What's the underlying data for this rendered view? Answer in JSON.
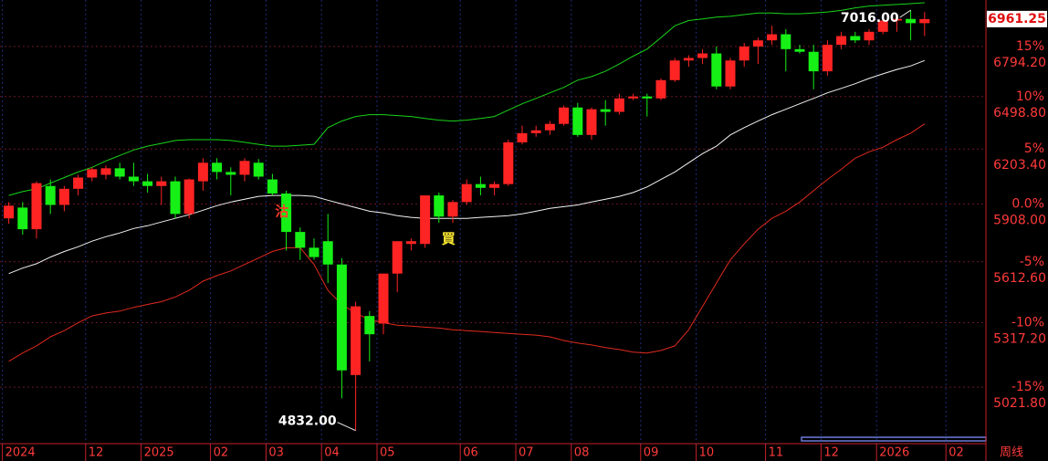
{
  "chart_data": {
    "type": "candlestick",
    "categories": [
      "2024",
      null,
      null,
      null,
      null,
      null,
      "12",
      null,
      null,
      null,
      "2025",
      null,
      null,
      null,
      null,
      "02",
      null,
      null,
      null,
      "03",
      null,
      null,
      null,
      "04",
      null,
      null,
      null,
      "05",
      null,
      null,
      null,
      null,
      null,
      "06",
      null,
      null,
      null,
      "07",
      null,
      null,
      null,
      "08",
      null,
      null,
      null,
      null,
      "09",
      null,
      null,
      null,
      "10",
      null,
      null,
      null,
      null,
      "11",
      null,
      null,
      null,
      "12",
      null,
      null,
      null,
      "2026",
      null,
      null,
      null,
      null,
      "02"
    ],
    "open": [
      5833,
      5889,
      5777,
      6003,
      5903,
      5988,
      6048,
      6063,
      6098,
      6053,
      6028,
      6003,
      6028,
      5856,
      6028,
      6128,
      6078,
      6063,
      6128,
      6038,
      5963,
      5763,
      5683,
      5716,
      5599,
      5076,
      5349,
      5313,
      5554,
      5702,
      5702,
      5953,
      5842,
      5918,
      6013,
      5993,
      6013,
      6240,
      6291,
      6307,
      6343,
      6436,
      6281,
      6426,
      6411,
      6488,
      6499,
      6488,
      6594,
      6710,
      6725,
      6752,
      6557,
      6710,
      6794,
      6831,
      6868,
      6778,
      6762,
      6646,
      6804,
      6857,
      6831,
      6883,
      6952,
      6962,
      6936,
      null,
      null
    ],
    "high": [
      5918,
      5918,
      6028,
      6038,
      6003,
      6063,
      6103,
      6113,
      6128,
      6128,
      6068,
      6053,
      6053,
      6043,
      6153,
      6153,
      6103,
      6153,
      6148,
      6068,
      5978,
      5786,
      5730,
      5856,
      5631,
      5417,
      5372,
      5554,
      5716,
      5730,
      5953,
      5968,
      5928,
      6038,
      6053,
      6028,
      6255,
      6333,
      6333,
      6359,
      6447,
      6462,
      6436,
      6478,
      6515,
      6515,
      6515,
      6604,
      6725,
      6741,
      6778,
      6794,
      6725,
      6815,
      6847,
      6920,
      6899,
      6804,
      6804,
      6831,
      6883,
      6883,
      6899,
      6973,
      6994,
      7016,
      7005,
      null,
      null
    ],
    "low": [
      5805,
      5749,
      5730,
      5856,
      5870,
      5953,
      6028,
      6038,
      6038,
      6003,
      5968,
      5903,
      5833,
      5833,
      5978,
      6038,
      5953,
      6028,
      6038,
      5953,
      5669,
      5622,
      5622,
      5508,
      4972,
      4832,
      5138,
      5263,
      5463,
      5669,
      5683,
      5810,
      5810,
      5903,
      5953,
      5953,
      6003,
      6229,
      6271,
      6281,
      6333,
      6271,
      6255,
      6333,
      6395,
      6478,
      6385,
      6478,
      6583,
      6673,
      6689,
      6541,
      6541,
      6673,
      6689,
      6804,
      6646,
      6752,
      6541,
      6620,
      6778,
      6815,
      6804,
      6868,
      6883,
      6831,
      6857,
      null,
      null
    ],
    "close": [
      5899,
      5777,
      6018,
      5903,
      5988,
      6048,
      6093,
      6098,
      6053,
      6028,
      6003,
      6028,
      5856,
      6038,
      6128,
      6078,
      6063,
      6138,
      6053,
      5963,
      5763,
      5683,
      5636,
      5599,
      5097,
      5395,
      5263,
      5554,
      5716,
      5716,
      5953,
      5842,
      5918,
      6013,
      5993,
      6013,
      6240,
      6291,
      6307,
      6343,
      6436,
      6281,
      6426,
      6411,
      6488,
      6499,
      6488,
      6594,
      6710,
      6725,
      6752,
      6557,
      6710,
      6794,
      6831,
      6868,
      6778,
      6762,
      6646,
      6804,
      6857,
      6831,
      6883,
      6952,
      6962,
      6936,
      6961.25,
      null,
      null
    ],
    "up_color": "#ff2424",
    "down_color": "#16f016",
    "bands": [
      {
        "color": "#19d419",
        "values": [
          5953,
          5973,
          5988,
          6018,
          6048,
          6078,
          6103,
          6138,
          6168,
          6198,
          6219,
          6234,
          6250,
          6255,
          6255,
          6255,
          6250,
          6240,
          6229,
          6219,
          6219,
          6224,
          6229,
          6322,
          6359,
          6385,
          6395,
          6395,
          6390,
          6385,
          6374,
          6364,
          6359,
          6364,
          6374,
          6385,
          6421,
          6457,
          6488,
          6520,
          6552,
          6594,
          6615,
          6646,
          6689,
          6736,
          6778,
          6847,
          6920,
          6952,
          6962,
          6973,
          6978,
          6989,
          6999,
          6999,
          6994,
          6994,
          6999,
          7005,
          7015,
          7031,
          7042,
          7047,
          7052,
          7057,
          7063,
          null,
          null
        ]
      },
      {
        "color": "#f2f2f2",
        "values": [
          5554,
          5581,
          5603,
          5636,
          5664,
          5688,
          5716,
          5739,
          5758,
          5781,
          5795,
          5814,
          5833,
          5852,
          5875,
          5899,
          5918,
          5933,
          5948,
          5953,
          5953,
          5953,
          5948,
          5928,
          5908,
          5889,
          5870,
          5861,
          5847,
          5838,
          5833,
          5833,
          5833,
          5833,
          5838,
          5842,
          5847,
          5856,
          5870,
          5885,
          5894,
          5903,
          5918,
          5933,
          5948,
          5968,
          5998,
          6038,
          6078,
          6128,
          6178,
          6219,
          6281,
          6322,
          6359,
          6395,
          6426,
          6457,
          6488,
          6520,
          6546,
          6573,
          6604,
          6631,
          6657,
          6678,
          6710,
          null,
          null
        ]
      },
      {
        "color": "#e02a1e",
        "values": [
          5138,
          5176,
          5209,
          5251,
          5280,
          5317,
          5349,
          5363,
          5372,
          5390,
          5404,
          5417,
          5440,
          5472,
          5517,
          5544,
          5567,
          5599,
          5631,
          5664,
          5683,
          5683,
          5599,
          5472,
          5404,
          5363,
          5331,
          5317,
          5305,
          5301,
          5296,
          5292,
          5284,
          5280,
          5276,
          5271,
          5267,
          5263,
          5259,
          5251,
          5234,
          5222,
          5213,
          5201,
          5192,
          5180,
          5176,
          5188,
          5209,
          5284,
          5395,
          5508,
          5622,
          5702,
          5777,
          5833,
          5870,
          5918,
          5978,
          6038,
          6093,
          6153,
          6188,
          6213,
          6255,
          6291,
          6343,
          null,
          null
        ]
      }
    ],
    "signals": [
      null,
      null,
      null,
      null,
      null,
      null,
      null,
      null,
      null,
      null,
      null,
      null,
      null,
      null,
      null,
      null,
      null,
      null,
      null,
      {
        "label": "沽",
        "color": "#ff3a2a"
      },
      null,
      null,
      null,
      null,
      null,
      null,
      null,
      null,
      null,
      null,
      null,
      {
        "label": "買",
        "color": "#ffee33"
      },
      null,
      null,
      null,
      null,
      null,
      null,
      null,
      null,
      null,
      null,
      null,
      null,
      null,
      null,
      null,
      null,
      null,
      null,
      null,
      null,
      null,
      null,
      null,
      null,
      null,
      null,
      null,
      null,
      null,
      null,
      null,
      null,
      null,
      null,
      null,
      null,
      null
    ],
    "high_label": "7016.00",
    "low_label": "4832.00",
    "period": "周线",
    "log_scale": true,
    "grid": true,
    "ylim": [
      4780,
      7080
    ],
    "yticks": [
      {
        "value": 6794.2,
        "label": "6794.20"
      },
      {
        "value": 6498.8,
        "label": "6498.80"
      },
      {
        "value": 6203.4,
        "label": "6203.40"
      },
      {
        "value": 5908,
        "label": "5908.00"
      },
      {
        "value": 5612.6,
        "label": "5612.60"
      },
      {
        "value": 5317.2,
        "label": "5317.20"
      },
      {
        "value": 5021.8,
        "label": "5021.80"
      }
    ],
    "percent_labels": [
      "15%",
      "10%",
      "5%",
      "0.0%",
      "-5%",
      "-10%",
      "-15%"
    ]
  }
}
